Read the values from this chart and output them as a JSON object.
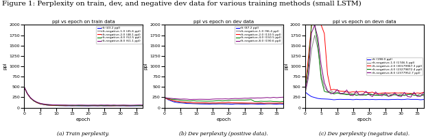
{
  "suptitle": "Figure 1: Perplexity on train, dev, and negative dev data for various training methods (small LSTM)",
  "suptitle_fontsize": 7.5,
  "plot_titles": [
    "ppl vs epoch on train data",
    "ppl vs epoch on dev data",
    "ppl vs epoch on devn data"
  ],
  "xlabel": "epoch",
  "ylabel": "ppl",
  "ylim": [
    0,
    2000
  ],
  "xlim": [
    0,
    37
  ],
  "captions": [
    "(a) Train perplexity.",
    "(b) Dev perplexity (positive data).",
    "(c) Dev perplexity (negative data)."
  ],
  "colors": [
    "blue",
    "gray",
    "red",
    "green",
    "purple"
  ],
  "line_labels": [
    "rlt (43.2 ppl)",
    "rlt-negative-1.0 (45.6 ppl)",
    "rlt-negative-2.0 (48.1 ppl)",
    "rlt-negative-4.0 (52.5 ppl)",
    "rlt-negative-8.0 (61.1 ppl)"
  ],
  "dev_labels": [
    "rlt (87.2 ppl)",
    "rlt-negative-1.0 (96.4 ppl)",
    "rlt-negative-2.0 (110.5 ppl)",
    "rlt-negative-4.0 (150.5 ppl)",
    "rlt-negative-8.0 (190.6 ppl)"
  ],
  "devn_labels": [
    "rlt (198.0 ppl)",
    "rlt-negative-1.0 (1746.5 ppl)",
    "rlt-negative-2.0 (30179967.3 ppl)",
    "rlt-negative-4.0 (23279872.4 ppl)",
    "rlt-negative-8.0 (2377952.7 ppl)"
  ],
  "n_epochs": 38
}
